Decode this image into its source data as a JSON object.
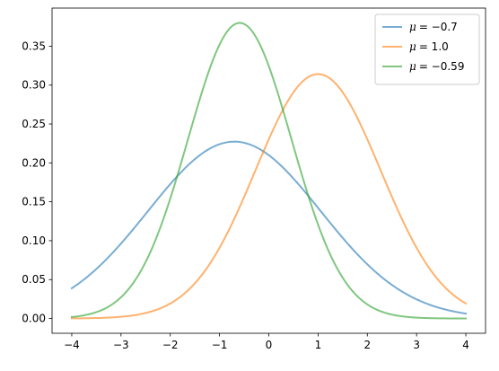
{
  "chart_data": {
    "type": "line",
    "title": "",
    "xlabel": "",
    "ylabel": "",
    "xlim": [
      -4.4,
      4.4
    ],
    "ylim": [
      -0.019,
      0.399
    ],
    "x_ticks": [
      -4,
      -3,
      -2,
      -1,
      0,
      1,
      2,
      3,
      4
    ],
    "x_tick_labels": [
      "−4",
      "−3",
      "−2",
      "−1",
      "0",
      "1",
      "2",
      "3",
      "4"
    ],
    "y_ticks": [
      0.0,
      0.05,
      0.1,
      0.15,
      0.2,
      0.25,
      0.3,
      0.35
    ],
    "y_tick_labels": [
      "0.00",
      "0.05",
      "0.10",
      "0.15",
      "0.20",
      "0.25",
      "0.30",
      "0.35"
    ],
    "grid": false,
    "legend_position": "top-right",
    "x_range": [
      -4,
      4
    ],
    "series": [
      {
        "name": "μ = −0.7",
        "mu_label": "μ",
        "value_label": "= −0.7",
        "mu": -0.7,
        "sigma": 1.755,
        "color": "#1f77b4"
      },
      {
        "name": "μ = 1.0",
        "mu_label": "μ",
        "value_label": "= 1.0",
        "mu": 1.0,
        "sigma": 1.27,
        "color": "#ff7f0e"
      },
      {
        "name": "μ = −0.59",
        "mu_label": "μ",
        "value_label": "= −0.59",
        "mu": -0.59,
        "sigma": 1.05,
        "color": "#2ca02c"
      }
    ]
  }
}
